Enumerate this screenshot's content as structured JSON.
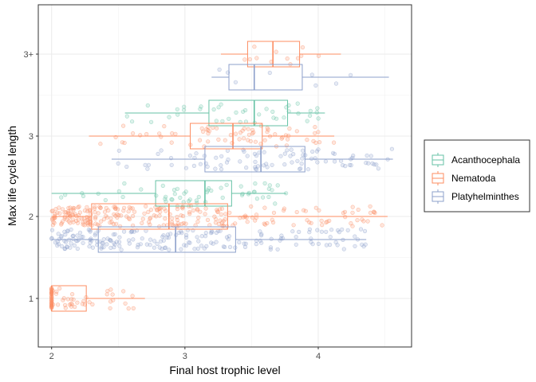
{
  "chart_data": {
    "type": "boxplot",
    "xlabel": "Final host trophic level",
    "ylabel": "Max life cycle length",
    "x_ticks": [
      2,
      3,
      4
    ],
    "xlim": [
      1.9,
      4.7
    ],
    "y_categories": [
      "1",
      "2",
      "3",
      "3+"
    ],
    "grid": true,
    "legend_position": "right",
    "colors": {
      "Acanthocephala": "#66C2A5",
      "Nematoda": "#FC8D62",
      "Platyhelminthes": "#8DA0CB"
    },
    "series": [
      {
        "name": "Acanthocephala",
        "boxes": [
          {
            "category": "2",
            "whisker_low": 2.0,
            "q1": 2.78,
            "median": 3.15,
            "q3": 3.35,
            "whisker_high": 3.76
          },
          {
            "category": "3",
            "whisker_low": 2.55,
            "q1": 3.18,
            "median": 3.52,
            "q3": 3.77,
            "whisker_high": 4.05
          }
        ]
      },
      {
        "name": "Nematoda",
        "boxes": [
          {
            "category": "1",
            "whisker_low": 2.0,
            "q1": 2.0,
            "median": 2.0,
            "q3": 2.26,
            "whisker_high": 2.7
          },
          {
            "category": "2",
            "whisker_low": 2.0,
            "q1": 2.3,
            "median": 2.88,
            "q3": 3.32,
            "whisker_high": 4.52
          },
          {
            "category": "3",
            "whisker_low": 2.28,
            "q1": 3.04,
            "median": 3.36,
            "q3": 3.58,
            "whisker_high": 4.12
          },
          {
            "category": "3+",
            "whisker_low": 3.27,
            "q1": 3.47,
            "median": 3.66,
            "q3": 3.86,
            "whisker_high": 4.17
          }
        ]
      },
      {
        "name": "Platyhelminthes",
        "boxes": [
          {
            "category": "2",
            "whisker_low": 2.0,
            "q1": 2.35,
            "median": 2.93,
            "q3": 3.38,
            "whisker_high": 4.36
          },
          {
            "category": "3",
            "whisker_low": 2.45,
            "q1": 3.15,
            "median": 3.57,
            "q3": 3.9,
            "whisker_high": 4.56
          },
          {
            "category": "3+",
            "whisker_low": 3.2,
            "q1": 3.33,
            "median": 3.52,
            "q3": 3.88,
            "whisker_high": 4.53
          }
        ]
      }
    ]
  }
}
